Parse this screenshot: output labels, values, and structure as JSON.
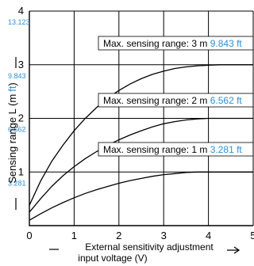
{
  "chart_data": {
    "type": "line",
    "xlabel_line1": "External sensitivity adjustment",
    "xlabel_line2": "input voltage (V)",
    "ylabel_pre": "Sensing range L (",
    "ylabel_unit_m": "m",
    "ylabel_unit_ft": "ft",
    "ylabel_post": ")",
    "xlim": [
      0,
      5
    ],
    "ylim": [
      0,
      4
    ],
    "x_ticks": [
      "0",
      "1",
      "2",
      "3",
      "4",
      "5"
    ],
    "y_ticks": [
      "1",
      "2",
      "3",
      "4"
    ],
    "y_ticks_ft": [
      "3.281",
      "6.562",
      "9.843",
      "13.123"
    ],
    "grid": true,
    "series": [
      {
        "name": "Max. sensing range: 3 m",
        "label_prefix": "Max. sensing range: 3 m ",
        "label_ft": "9.843 ft",
        "x": [
          0,
          0.25,
          0.5,
          0.75,
          1,
          1.25,
          1.5,
          1.75,
          2,
          2.25,
          2.5,
          2.75,
          3,
          3.25,
          3.5,
          3.75,
          4,
          4.25,
          4.5,
          4.75,
          5
        ],
        "y": [
          0.38,
          0.83,
          1.2,
          1.5,
          1.77,
          2.0,
          2.2,
          2.38,
          2.52,
          2.64,
          2.74,
          2.82,
          2.88,
          2.93,
          2.96,
          2.98,
          2.99,
          3.0,
          3.0,
          3.0,
          3.0
        ]
      },
      {
        "name": "Max. sensing range: 2 m",
        "label_prefix": "Max. sensing range: 2 m ",
        "label_ft": "6.562 ft",
        "x": [
          0,
          0.25,
          0.5,
          0.75,
          1,
          1.25,
          1.5,
          1.75,
          2,
          2.25,
          2.5,
          2.75,
          3,
          3.25,
          3.5,
          3.75,
          4,
          4.25,
          4.5,
          4.75,
          5
        ],
        "y": [
          0.25,
          0.5,
          0.73,
          0.93,
          1.1,
          1.25,
          1.38,
          1.5,
          1.6,
          1.69,
          1.77,
          1.84,
          1.9,
          1.94,
          1.97,
          1.99,
          2.0,
          2.0,
          2.0,
          2.0,
          2.0
        ]
      },
      {
        "name": "Max. sensing range: 1 m",
        "label_prefix": "Max. sensing range: 1 m ",
        "label_ft": "3.281 ft",
        "x": [
          0,
          0.25,
          0.5,
          0.75,
          1,
          1.25,
          1.5,
          1.75,
          2,
          2.25,
          2.5,
          2.75,
          3,
          3.25,
          3.5,
          3.75,
          4,
          4.25,
          4.5,
          4.75,
          5
        ],
        "y": [
          0.1,
          0.22,
          0.33,
          0.43,
          0.52,
          0.6,
          0.67,
          0.73,
          0.79,
          0.84,
          0.88,
          0.92,
          0.95,
          0.97,
          0.99,
          1.0,
          1.0,
          1.0,
          1.0,
          1.0,
          1.0
        ]
      }
    ],
    "colors": {
      "ft_values": "#2b8fd6",
      "lines": "#000000"
    }
  }
}
